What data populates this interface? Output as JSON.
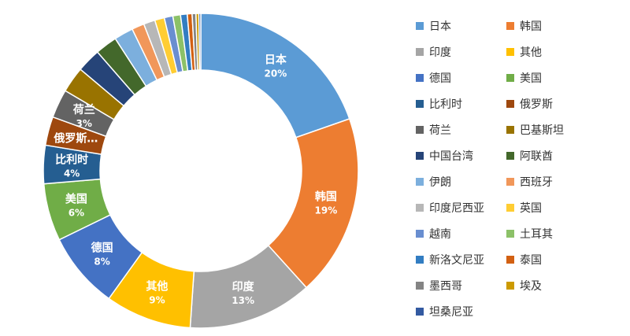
{
  "chart_data": {
    "type": "pie",
    "variant": "donut",
    "title": "",
    "legend_position": "right",
    "series": [
      {
        "name": "日本",
        "value": 20,
        "color": "#5b9bd5",
        "label": "日本",
        "pct_label": "20%"
      },
      {
        "name": "韩国",
        "value": 19,
        "color": "#ed7d31",
        "label": "韩国",
        "pct_label": "19%"
      },
      {
        "name": "印度",
        "value": 13,
        "color": "#a5a5a5",
        "label": "印度",
        "pct_label": "13%"
      },
      {
        "name": "其他",
        "value": 9,
        "color": "#ffc000",
        "label": "其他",
        "pct_label": "9%"
      },
      {
        "name": "德国",
        "value": 8,
        "color": "#4472c4",
        "label": "德国",
        "pct_label": "8%"
      },
      {
        "name": "美国",
        "value": 6,
        "color": "#70ad47",
        "label": "美国",
        "pct_label": "6%"
      },
      {
        "name": "比利时",
        "value": 4,
        "color": "#255e91",
        "label": "比利时",
        "pct_label": "4%"
      },
      {
        "name": "俄罗斯",
        "value": 3,
        "color": "#9e480e",
        "label": "俄罗斯…",
        "pct_label": ""
      },
      {
        "name": "荷兰",
        "value": 3,
        "color": "#636363",
        "label": "荷兰",
        "pct_label": "3%"
      },
      {
        "name": "巴基斯坦",
        "value": 2.7,
        "color": "#997300",
        "label": "",
        "pct_label": ""
      },
      {
        "name": "中国台湾",
        "value": 2.5,
        "color": "#264478",
        "label": "",
        "pct_label": ""
      },
      {
        "name": "阿联酋",
        "value": 2.3,
        "color": "#43682b",
        "label": "",
        "pct_label": ""
      },
      {
        "name": "伊朗",
        "value": 2.0,
        "color": "#7cafdd",
        "label": "",
        "pct_label": ""
      },
      {
        "name": "西班牙",
        "value": 1.3,
        "color": "#f1975a",
        "label": "",
        "pct_label": ""
      },
      {
        "name": "印度尼西亚",
        "value": 1.2,
        "color": "#b7b7b7",
        "label": "",
        "pct_label": ""
      },
      {
        "name": "英国",
        "value": 1.0,
        "color": "#ffcd33",
        "label": "",
        "pct_label": ""
      },
      {
        "name": "越南",
        "value": 0.9,
        "color": "#698ed0",
        "label": "",
        "pct_label": ""
      },
      {
        "name": "土耳其",
        "value": 0.8,
        "color": "#8cc168",
        "label": "",
        "pct_label": ""
      },
      {
        "name": "新洛文尼亚",
        "value": 0.7,
        "color": "#327dc2",
        "label": "",
        "pct_label": ""
      },
      {
        "name": "泰国",
        "value": 0.5,
        "color": "#d26012",
        "label": "",
        "pct_label": ""
      },
      {
        "name": "墨西哥",
        "value": 0.4,
        "color": "#848484",
        "label": "",
        "pct_label": ""
      },
      {
        "name": "埃及",
        "value": 0.3,
        "color": "#cc9a00",
        "label": "",
        "pct_label": ""
      },
      {
        "name": "坦桑尼亚",
        "value": 0.2,
        "color": "#335aa1",
        "label": "",
        "pct_label": ""
      }
    ]
  }
}
